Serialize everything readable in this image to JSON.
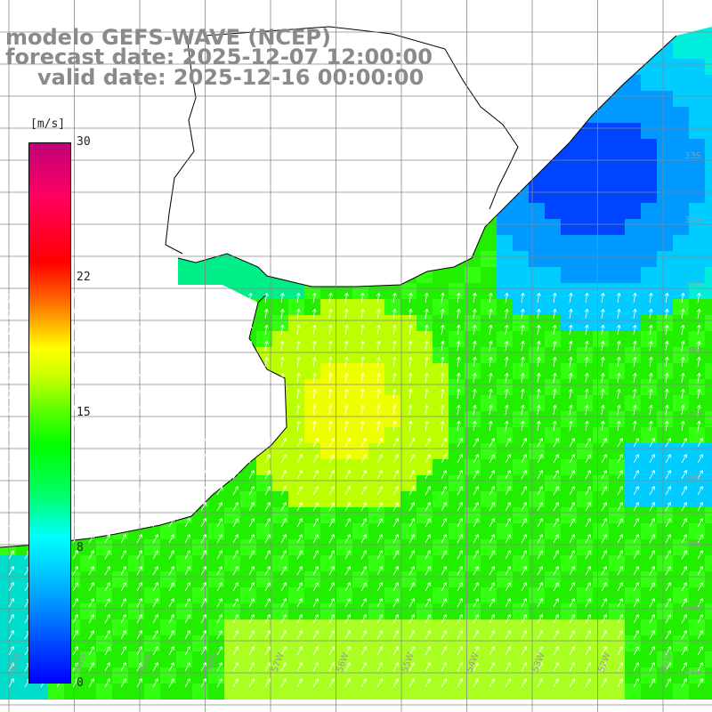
{
  "title": {
    "line1": "modelo GEFS-WAVE (NCEP)",
    "line2": "forecast date: 2025-12-07 12:00:00",
    "line3": "valid date: 2025-12-16 00:00:00"
  },
  "colorbar": {
    "unit": "[m/s]",
    "ticks": [
      "30",
      "22",
      "15",
      "8",
      "0"
    ],
    "tick_values": [
      30,
      22,
      15,
      8,
      0
    ],
    "range": [
      0,
      30
    ],
    "colors": [
      "#0000ff",
      "#00aaff",
      "#00ffff",
      "#00ff66",
      "#00ff00",
      "#ccff00",
      "#ffff00",
      "#ffaa00",
      "#ff0000",
      "#c0007a"
    ]
  },
  "map": {
    "region": "South Atlantic off Rio de la Plata",
    "lon_labels": [
      "61W",
      "60W",
      "59W",
      "58W",
      "57W",
      "56W",
      "55W",
      "54W",
      "53W",
      "52W",
      "51W"
    ],
    "lat_labels": [
      "33S",
      "34S",
      "35S",
      "36S",
      "37S",
      "38S",
      "39S",
      "40S",
      "41S"
    ],
    "field": "wind speed with direction arrows",
    "land_color": "#ffffff",
    "grid_color": "#888888"
  }
}
